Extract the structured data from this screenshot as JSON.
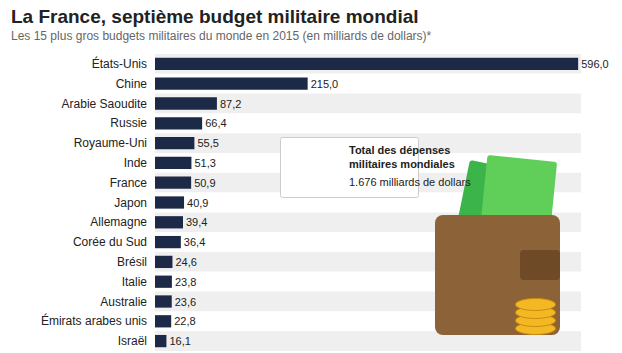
{
  "chart_data": {
    "type": "bar",
    "title": "La France, septième budget militaire mondial",
    "subtitle": "Les 15 plus gros budgets militaires du monde en 2015 (en milliards de dollars)*",
    "orientation": "horizontal",
    "categories": [
      "États-Unis",
      "Chine",
      "Arabie Saoudite",
      "Russie",
      "Royaume-Uni",
      "Inde",
      "France",
      "Japon",
      "Allemagne",
      "Corée du Sud",
      "Brésil",
      "Italie",
      "Australie",
      "Émirats arabes unis",
      "Israël"
    ],
    "values": [
      596.0,
      215.0,
      87.2,
      66.4,
      55.5,
      51.3,
      50.9,
      40.9,
      39.4,
      36.4,
      24.6,
      23.8,
      23.6,
      22.8,
      16.1
    ],
    "value_labels": [
      "596,0",
      "215,0",
      "87,2",
      "66,4",
      "55,5",
      "51,3",
      "50,9",
      "40,9",
      "39,4",
      "36,4",
      "24,6",
      "23,8",
      "23,6",
      "22,8",
      "16,1"
    ],
    "color": "#1c2a48",
    "xlim": [
      0,
      600
    ],
    "xticks": [
      0,
      600
    ],
    "grid": false,
    "data_labels": true,
    "tick_labels": "y",
    "annotations": [
      "Total des dépenses\nmilitaires mondiales",
      "1.676 milliards de dollars"
    ]
  }
}
